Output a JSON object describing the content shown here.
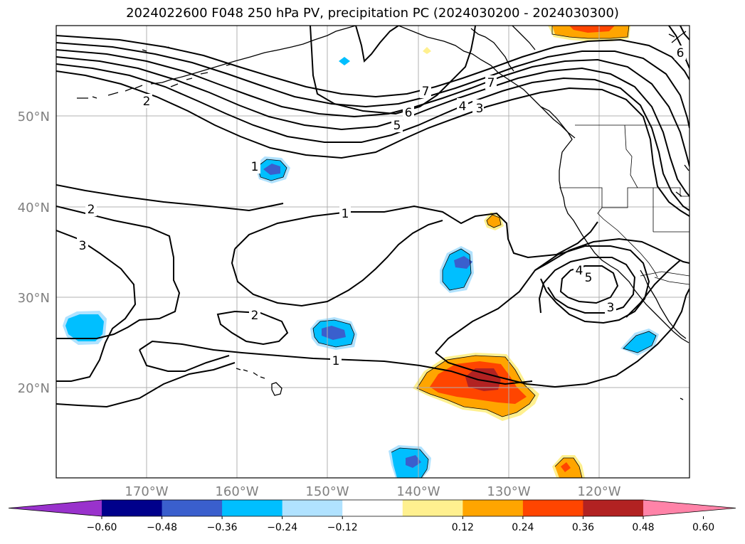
{
  "title": "2024022600 F048 250 hPa PV, precipitation PC (2024030200 - 2024030300)",
  "map": {
    "lat_labels": [
      "50°N",
      "40°N",
      "30°N",
      "20°N"
    ],
    "lon_labels": [
      "170°W",
      "160°W",
      "150°W",
      "140°W",
      "130°W",
      "120°W"
    ],
    "contour_labels": {
      "c1a": "1",
      "c1b": "1",
      "c1c": "1",
      "c2a": "2",
      "c2b": "2",
      "c2c": "2",
      "c3a": "3",
      "c3b": "3",
      "c3c": "3",
      "c4a": "4",
      "c4b": "4",
      "c5a": "5",
      "c5b": "5",
      "c6a": "6",
      "c6b": "6",
      "c7a": "7",
      "c7b": "7"
    }
  },
  "colorbar": {
    "ticks": [
      "−0.60",
      "−0.48",
      "−0.36",
      "−0.24",
      "−0.12",
      "0.12",
      "0.24",
      "0.36",
      "0.48",
      "0.60"
    ],
    "colors": [
      "#9932cc",
      "#00008b",
      "#3a5fcd",
      "#00bfff",
      "#b0e2ff",
      "#ffffff",
      "#fff08f",
      "#ffa500",
      "#ff4500",
      "#b22222",
      "#ff83a8"
    ]
  },
  "colors": {
    "frame": "#000000",
    "grid": "#b0b0b0",
    "axis_label": "#808080",
    "contour": "#000000"
  }
}
